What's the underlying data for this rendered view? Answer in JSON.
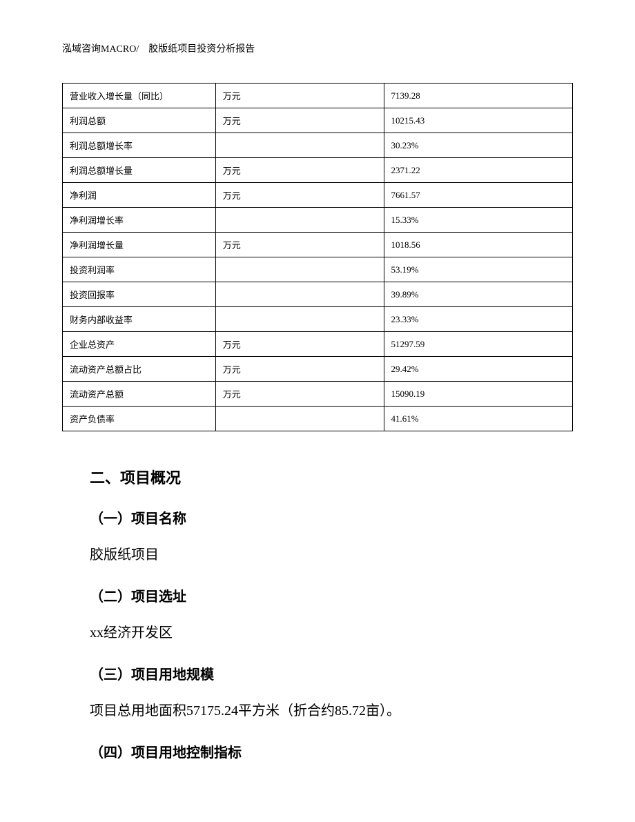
{
  "header": {
    "company": "泓域咨询MACRO/",
    "title": "胶版纸项目投资分析报告"
  },
  "table": {
    "rows": [
      {
        "label": "营业收入增长量（同比）",
        "unit": "万元",
        "value": "7139.28"
      },
      {
        "label": "利润总额",
        "unit": "万元",
        "value": "10215.43"
      },
      {
        "label": "利润总额增长率",
        "unit": "",
        "value": "30.23%"
      },
      {
        "label": "利润总额增长量",
        "unit": "万元",
        "value": "2371.22"
      },
      {
        "label": "净利润",
        "unit": "万元",
        "value": "7661.57"
      },
      {
        "label": "净利润增长率",
        "unit": "",
        "value": "15.33%"
      },
      {
        "label": "净利润增长量",
        "unit": "万元",
        "value": "1018.56"
      },
      {
        "label": "投资利润率",
        "unit": "",
        "value": "53.19%"
      },
      {
        "label": "投资回报率",
        "unit": "",
        "value": "39.89%"
      },
      {
        "label": "财务内部收益率",
        "unit": "",
        "value": "23.33%"
      },
      {
        "label": "企业总资产",
        "unit": "万元",
        "value": "51297.59"
      },
      {
        "label": "流动资产总额占比",
        "unit": "万元",
        "value": "29.42%"
      },
      {
        "label": "流动资产总额",
        "unit": "万元",
        "value": "15090.19"
      },
      {
        "label": "资产负债率",
        "unit": "",
        "value": "41.61%"
      }
    ]
  },
  "sections": {
    "main_heading": "二、项目概况",
    "sub1_heading": "（一）项目名称",
    "sub1_text": "胶版纸项目",
    "sub2_heading": "（二）项目选址",
    "sub2_text": "xx经济开发区",
    "sub3_heading": "（三）项目用地规模",
    "sub3_text": "项目总用地面积57175.24平方米（折合约85.72亩）。",
    "sub4_heading": "（四）项目用地控制指标"
  }
}
